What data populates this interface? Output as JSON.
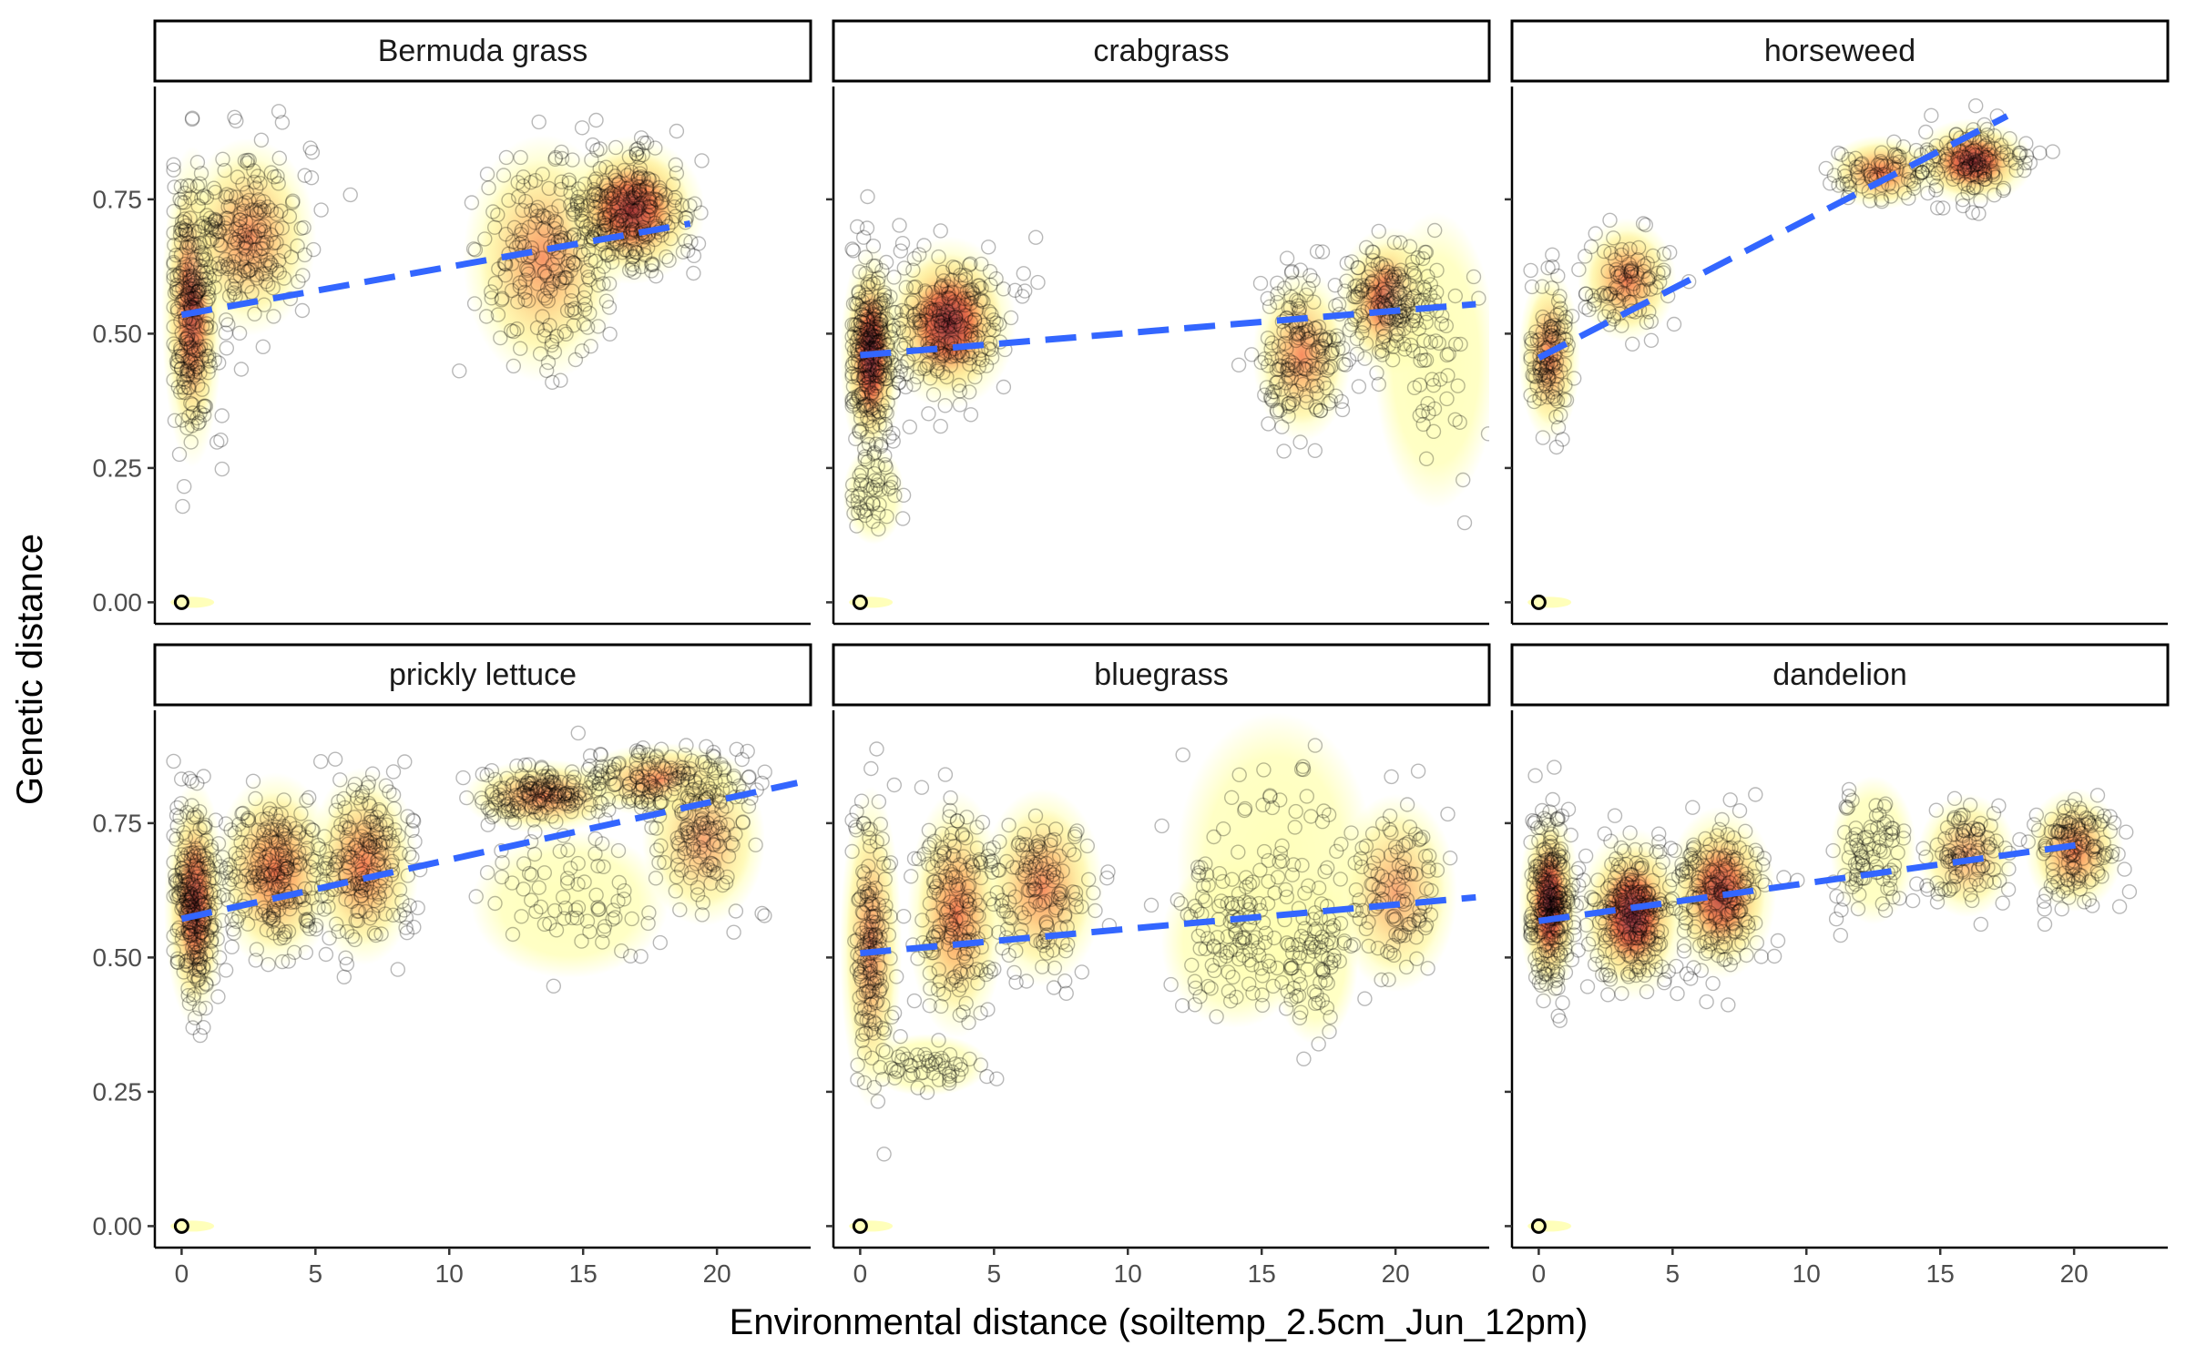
{
  "chart_data": {
    "type": "scatter",
    "layout": "facet_wrap 2x3",
    "xlabel": "Environmental distance (soiltemp_2.5cm_Jun_12pm)",
    "ylabel": "Genetic distance",
    "xlim": [
      -1,
      23.5
    ],
    "ylim": [
      -0.04,
      0.96
    ],
    "x_ticks": [
      0,
      5,
      10,
      15,
      20
    ],
    "y_ticks": [
      0.0,
      0.25,
      0.5,
      0.75
    ],
    "y_tick_labels": [
      "0.00",
      "0.25",
      "0.50",
      "0.75"
    ],
    "trend_color": "#3366ff",
    "density_palette": [
      "#ffffb2",
      "#fed976",
      "#feb24c",
      "#fd8d3c",
      "#f03b20",
      "#bd0026",
      "#6a1b4d",
      "#2b0a3d"
    ],
    "grid": false,
    "legend": "none",
    "panels": [
      {
        "name": "Bermuda grass",
        "trend": {
          "x": [
            0,
            19
          ],
          "y": [
            0.535,
            0.705
          ]
        },
        "clusters": [
          {
            "x": 0.4,
            "y": 0.55,
            "sx": 0.45,
            "sy": 0.13,
            "n": 230,
            "d": 0.7
          },
          {
            "x": 2.5,
            "y": 0.68,
            "sx": 1.1,
            "sy": 0.08,
            "n": 200,
            "d": 0.45
          },
          {
            "x": 13.5,
            "y": 0.64,
            "sx": 1.3,
            "sy": 0.1,
            "n": 200,
            "d": 0.4
          },
          {
            "x": 16.8,
            "y": 0.73,
            "sx": 1.2,
            "sy": 0.06,
            "n": 240,
            "d": 0.8
          }
        ],
        "zero_point": true
      },
      {
        "name": "crabgrass",
        "trend": {
          "x": [
            0,
            23
          ],
          "y": [
            0.46,
            0.555
          ]
        },
        "clusters": [
          {
            "x": 0.4,
            "y": 0.46,
            "sx": 0.5,
            "sy": 0.09,
            "n": 260,
            "d": 1
          },
          {
            "x": 3.3,
            "y": 0.52,
            "sx": 1.1,
            "sy": 0.07,
            "n": 220,
            "d": 0.9
          },
          {
            "x": 0.5,
            "y": 0.2,
            "sx": 0.5,
            "sy": 0.04,
            "n": 50,
            "d": 0
          },
          {
            "x": 16.5,
            "y": 0.46,
            "sx": 0.8,
            "sy": 0.07,
            "n": 160,
            "d": 0.45
          },
          {
            "x": 19.8,
            "y": 0.56,
            "sx": 0.9,
            "sy": 0.06,
            "n": 170,
            "d": 0.7
          },
          {
            "x": 21.5,
            "y": 0.45,
            "sx": 1,
            "sy": 0.12,
            "n": 40,
            "d": 0
          }
        ],
        "zero_point": true
      },
      {
        "name": "horseweed",
        "trend": {
          "x": [
            0,
            17.5
          ],
          "y": [
            0.455,
            0.905
          ]
        },
        "clusters": [
          {
            "x": 0.4,
            "y": 0.46,
            "sx": 0.4,
            "sy": 0.07,
            "n": 110,
            "d": 0.55
          },
          {
            "x": 3.3,
            "y": 0.6,
            "sx": 0.8,
            "sy": 0.05,
            "n": 90,
            "d": 0.55
          },
          {
            "x": 12.8,
            "y": 0.8,
            "sx": 0.9,
            "sy": 0.03,
            "n": 70,
            "d": 0.6
          },
          {
            "x": 16.2,
            "y": 0.82,
            "sx": 1,
            "sy": 0.035,
            "n": 130,
            "d": 0.85
          }
        ],
        "zero_point": true
      },
      {
        "name": "prickly lettuce",
        "trend": {
          "x": [
            0,
            23
          ],
          "y": [
            0.572,
            0.825
          ]
        },
        "clusters": [
          {
            "x": 0.5,
            "y": 0.6,
            "sx": 0.5,
            "sy": 0.1,
            "n": 250,
            "d": 0.75
          },
          {
            "x": 3.5,
            "y": 0.66,
            "sx": 1,
            "sy": 0.08,
            "n": 220,
            "d": 0.6
          },
          {
            "x": 6.8,
            "y": 0.67,
            "sx": 0.9,
            "sy": 0.08,
            "n": 180,
            "d": 0.55
          },
          {
            "x": 13.5,
            "y": 0.8,
            "sx": 1.3,
            "sy": 0.03,
            "n": 160,
            "d": 0.5
          },
          {
            "x": 18,
            "y": 0.83,
            "sx": 1.4,
            "sy": 0.03,
            "n": 150,
            "d": 0.5
          },
          {
            "x": 19.5,
            "y": 0.72,
            "sx": 1,
            "sy": 0.07,
            "n": 110,
            "d": 0.3
          },
          {
            "x": 14.5,
            "y": 0.6,
            "sx": 1.6,
            "sy": 0.06,
            "n": 70,
            "d": 0
          }
        ],
        "zero_point": true
      },
      {
        "name": "bluegrass",
        "trend": {
          "x": [
            0,
            23
          ],
          "y": [
            0.508,
            0.612
          ]
        },
        "clusters": [
          {
            "x": 0.4,
            "y": 0.52,
            "sx": 0.4,
            "sy": 0.13,
            "n": 160,
            "d": 0.45
          },
          {
            "x": 3.6,
            "y": 0.58,
            "sx": 0.8,
            "sy": 0.1,
            "n": 180,
            "d": 0.55
          },
          {
            "x": 6.8,
            "y": 0.63,
            "sx": 1,
            "sy": 0.08,
            "n": 130,
            "d": 0.45
          },
          {
            "x": 2.5,
            "y": 0.3,
            "sx": 1,
            "sy": 0.02,
            "n": 50,
            "d": 0.2
          },
          {
            "x": 14,
            "y": 0.53,
            "sx": 1.2,
            "sy": 0.07,
            "n": 110,
            "d": 0.2
          },
          {
            "x": 17,
            "y": 0.5,
            "sx": 0.7,
            "sy": 0.07,
            "n": 70,
            "d": 0.15
          },
          {
            "x": 20,
            "y": 0.62,
            "sx": 1,
            "sy": 0.08,
            "n": 110,
            "d": 0.3
          },
          {
            "x": 15.5,
            "y": 0.68,
            "sx": 1.6,
            "sy": 0.12,
            "n": 60,
            "d": 0
          }
        ],
        "zero_point": true
      },
      {
        "name": "dandelion",
        "trend": {
          "x": [
            0,
            20.5
          ],
          "y": [
            0.568,
            0.712
          ]
        },
        "clusters": [
          {
            "x": 0.4,
            "y": 0.6,
            "sx": 0.45,
            "sy": 0.08,
            "n": 240,
            "d": 1
          },
          {
            "x": 3.5,
            "y": 0.58,
            "sx": 0.9,
            "sy": 0.07,
            "n": 220,
            "d": 1
          },
          {
            "x": 6.8,
            "y": 0.62,
            "sx": 0.9,
            "sy": 0.07,
            "n": 180,
            "d": 0.75
          },
          {
            "x": 12.5,
            "y": 0.7,
            "sx": 0.7,
            "sy": 0.06,
            "n": 90,
            "d": 0.2
          },
          {
            "x": 16,
            "y": 0.69,
            "sx": 0.8,
            "sy": 0.05,
            "n": 100,
            "d": 0.3
          },
          {
            "x": 20,
            "y": 0.7,
            "sx": 0.8,
            "sy": 0.05,
            "n": 130,
            "d": 0.55
          }
        ],
        "zero_point": true
      }
    ]
  }
}
